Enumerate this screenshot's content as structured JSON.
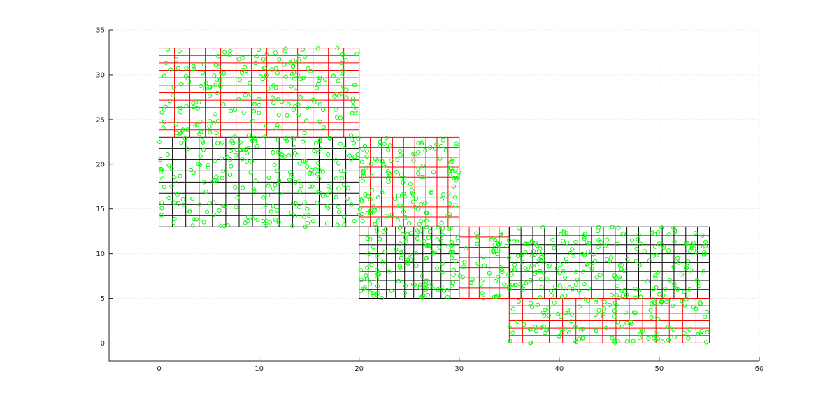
{
  "chart_data": {
    "type": "scatter",
    "title": "",
    "xlabel": "",
    "ylabel": "",
    "xlim": [
      -5,
      60
    ],
    "ylim": [
      -2,
      35
    ],
    "xticks": [
      0,
      10,
      20,
      30,
      40,
      50,
      60
    ],
    "yticks": [
      0,
      5,
      10,
      15,
      20,
      25,
      30,
      35
    ],
    "grid": true,
    "legend": "none",
    "colors": {
      "axis": "#262626",
      "grid": "#dfdfdf",
      "mesh_black": "#000000",
      "mesh_red": "#ff0000",
      "points": "#00ff00"
    },
    "meshes": [
      {
        "color": "black",
        "x": [
          0,
          20
        ],
        "y": [
          13,
          23
        ],
        "nx": 15,
        "ny": 8
      },
      {
        "color": "red",
        "x": [
          0,
          20
        ],
        "y": [
          23,
          33
        ],
        "nx": 13,
        "ny": 12
      },
      {
        "color": "red",
        "x": [
          20,
          30
        ],
        "y": [
          13,
          23
        ],
        "nx": 9,
        "ny": 9
      },
      {
        "color": "black",
        "x": [
          20,
          30
        ],
        "y": [
          5,
          13
        ],
        "nx": 11,
        "ny": 8
      },
      {
        "color": "red",
        "x": [
          30,
          35
        ],
        "y": [
          5,
          13
        ],
        "nx": 5,
        "ny": 7
      },
      {
        "color": "black",
        "x": [
          35,
          55
        ],
        "y": [
          5,
          13
        ],
        "nx": 17,
        "ny": 8
      },
      {
        "color": "red",
        "x": [
          35,
          55
        ],
        "y": [
          0,
          5
        ],
        "nx": 15,
        "ny": 6
      }
    ],
    "point_regions": [
      {
        "x": [
          0,
          20
        ],
        "y": [
          13,
          33
        ],
        "count": 420
      },
      {
        "x": [
          20,
          30
        ],
        "y": [
          5,
          23
        ],
        "count": 260
      },
      {
        "x": [
          30,
          35
        ],
        "y": [
          5,
          13
        ],
        "count": 45
      },
      {
        "x": [
          35,
          55
        ],
        "y": [
          0,
          13
        ],
        "count": 330
      }
    ]
  }
}
